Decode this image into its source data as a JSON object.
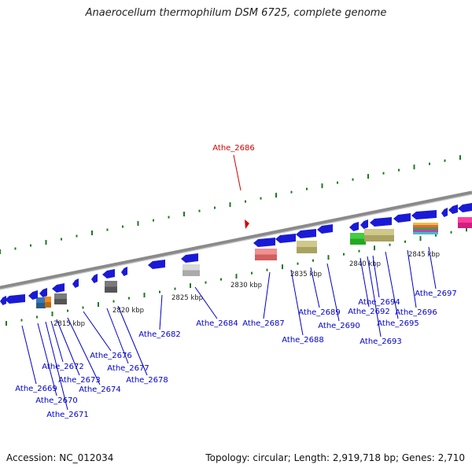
{
  "title": "Anaerocellum thermophilum DSM 6725, complete genome",
  "accession_label": "Accession: NC_012034",
  "topology_label": "Topology: circular; Length: 2,919,718 bp; Genes: 2,710",
  "highlight_gene": "Athe_2686",
  "scale_labels": [
    "2815 kbp",
    "2820 kbp",
    "2825 kbp",
    "2830 kbp",
    "2835 kbp",
    "2840 kbp",
    "2845 kbp"
  ],
  "genes": [
    "Athe_2669",
    "Athe_2670",
    "Athe_2671",
    "Athe_2672",
    "Athe_2673",
    "Athe_2674",
    "Athe_2676",
    "Athe_2677",
    "Athe_2678",
    "Athe_2682",
    "Athe_2684",
    "Athe_2687",
    "Athe_2688",
    "Athe_2689",
    "Athe_2690",
    "Athe_2692",
    "Athe_2693",
    "Athe_2694",
    "Athe_2695",
    "Athe_2696",
    "Athe_2697"
  ],
  "colors": {
    "gene": "#1a1ad6",
    "label": "#0000cc",
    "highlight": "#d40000",
    "tick": "#1c7a1c",
    "backbone": "#8a8a8a"
  }
}
